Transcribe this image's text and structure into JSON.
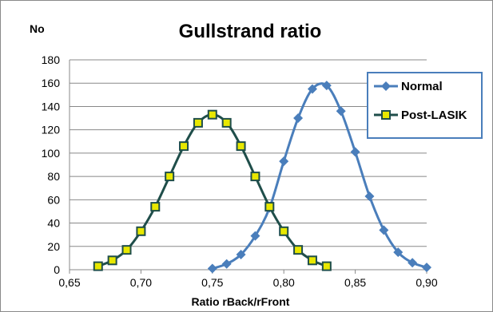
{
  "chart_data": {
    "type": "line",
    "title": "Gullstrand ratio",
    "ylabel": "No",
    "xlabel": "Ratio rBack/rFront",
    "xlim": [
      0.65,
      0.9
    ],
    "ylim": [
      0,
      180
    ],
    "x_tick_labels": [
      "0,65",
      "0,70",
      "0,75",
      "0,80",
      "0,85",
      "0,90"
    ],
    "y_tick_labels": [
      "0",
      "20",
      "40",
      "60",
      "80",
      "100",
      "120",
      "140",
      "160",
      "180"
    ],
    "grid": "horizontal",
    "legend_position": "right",
    "series": [
      {
        "name": "Normal",
        "color": "#4A7EBB",
        "marker": "diamond",
        "x": [
          0.75,
          0.76,
          0.77,
          0.78,
          0.79,
          0.8,
          0.81,
          0.82,
          0.83,
          0.84,
          0.85,
          0.86,
          0.87,
          0.88,
          0.89,
          0.9
        ],
        "y": [
          1,
          5,
          13,
          29,
          53,
          93,
          130,
          155,
          158,
          136,
          101,
          63,
          34,
          15,
          6,
          2
        ]
      },
      {
        "name": "Post-LASIK",
        "color": "#1F4E4A",
        "marker_fill": "#E8E800",
        "marker": "square",
        "x": [
          0.67,
          0.68,
          0.69,
          0.7,
          0.71,
          0.72,
          0.73,
          0.74,
          0.75,
          0.76,
          0.77,
          0.78,
          0.79,
          0.8,
          0.81,
          0.82,
          0.83
        ],
        "y": [
          3,
          8,
          17,
          33,
          54,
          80,
          106,
          126,
          133,
          126,
          106,
          80,
          54,
          33,
          17,
          8,
          3
        ]
      }
    ]
  }
}
